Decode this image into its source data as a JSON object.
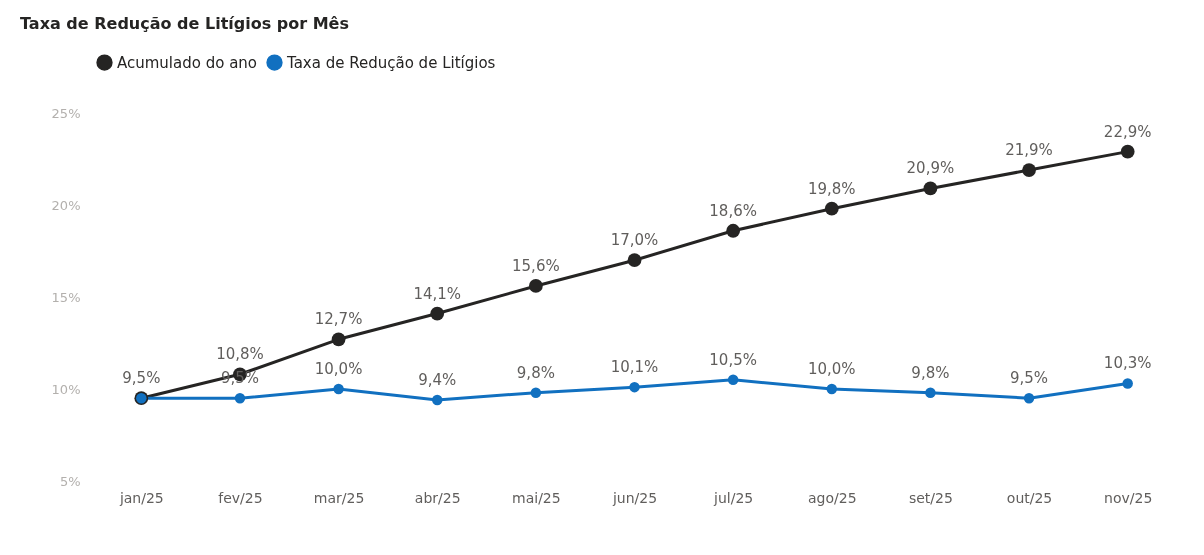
{
  "chart_data": {
    "type": "line",
    "title": "Taxa de Redução de Litígios por Mês",
    "categories": [
      "jan/25",
      "fev/25",
      "mar/25",
      "abr/25",
      "mai/25",
      "jun/25",
      "jul/25",
      "ago/25",
      "set/25",
      "out/25",
      "nov/25"
    ],
    "series": [
      {
        "name": "Acumulado do ano",
        "color": "#252423",
        "values": [
          9.5,
          10.8,
          12.7,
          14.1,
          15.6,
          17.0,
          18.6,
          19.8,
          20.9,
          21.9,
          22.9
        ],
        "value_labels": [
          null,
          "10,8%",
          "12,7%",
          "14,1%",
          "15,6%",
          "17,0%",
          "18,6%",
          "19,8%",
          "20,9%",
          "21,9%",
          "22,9%"
        ]
      },
      {
        "name": "Taxa de Redução de Litígios",
        "color": "#1170c0",
        "values": [
          9.5,
          9.5,
          10.0,
          9.4,
          9.8,
          10.1,
          10.5,
          10.0,
          9.8,
          9.5,
          10.3
        ],
        "value_labels": [
          "9,5%",
          "9,5%",
          "10,0%",
          "9,4%",
          "9,8%",
          "10,1%",
          "10,5%",
          "10,0%",
          "9,8%",
          "9,5%",
          "10,3%"
        ]
      }
    ],
    "ylim": [
      5,
      25
    ],
    "yticks": [
      {
        "value": 5,
        "label": "5%"
      },
      {
        "value": 10,
        "label": "10%"
      },
      {
        "value": 15,
        "label": "15%"
      },
      {
        "value": 20,
        "label": "20%"
      },
      {
        "value": 25,
        "label": "25%"
      }
    ],
    "legend": "top left",
    "marker": "circle",
    "line_style": "solid"
  }
}
